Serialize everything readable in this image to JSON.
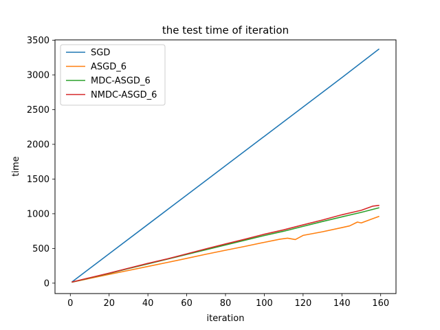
{
  "chart_data": {
    "type": "line",
    "title": "the test time of iteration",
    "xlabel": "iteration",
    "ylabel": "time",
    "xlim": [
      -7.9,
      167.9
    ],
    "ylim": [
      -150,
      3505
    ],
    "xticks": [
      0,
      20,
      40,
      60,
      80,
      100,
      120,
      140,
      160
    ],
    "yticks": [
      0,
      500,
      1000,
      1500,
      2000,
      2500,
      3000,
      3500
    ],
    "grid": false,
    "legend_position": "top-left",
    "series": [
      {
        "name": "SGD",
        "color": "#1f77b4",
        "points": [
          [
            1,
            21
          ],
          [
            20,
            423
          ],
          [
            40,
            846
          ],
          [
            60,
            1269
          ],
          [
            80,
            1692
          ],
          [
            100,
            2115
          ],
          [
            120,
            2538
          ],
          [
            140,
            2961
          ],
          [
            159,
            3370
          ]
        ]
      },
      {
        "name": "ASGD_6",
        "color": "#ff7f0e",
        "points": [
          [
            1,
            15
          ],
          [
            10,
            68
          ],
          [
            20,
            126
          ],
          [
            30,
            183
          ],
          [
            40,
            241
          ],
          [
            50,
            298
          ],
          [
            60,
            357
          ],
          [
            70,
            417
          ],
          [
            80,
            474
          ],
          [
            90,
            530
          ],
          [
            100,
            588
          ],
          [
            108,
            633
          ],
          [
            112,
            648
          ],
          [
            116,
            628
          ],
          [
            120,
            688
          ],
          [
            130,
            740
          ],
          [
            140,
            800
          ],
          [
            144,
            825
          ],
          [
            148,
            880
          ],
          [
            150,
            868
          ],
          [
            155,
            920
          ],
          [
            159,
            960
          ]
        ]
      },
      {
        "name": "MDC-ASGD_6",
        "color": "#2ca02c",
        "points": [
          [
            1,
            16
          ],
          [
            10,
            75
          ],
          [
            20,
            140
          ],
          [
            30,
            210
          ],
          [
            40,
            278
          ],
          [
            50,
            345
          ],
          [
            60,
            413
          ],
          [
            70,
            482
          ],
          [
            80,
            550
          ],
          [
            90,
            618
          ],
          [
            100,
            686
          ],
          [
            110,
            748
          ],
          [
            120,
            818
          ],
          [
            130,
            888
          ],
          [
            140,
            955
          ],
          [
            150,
            1020
          ],
          [
            159,
            1085
          ]
        ]
      },
      {
        "name": "NMDC-ASGD_6",
        "color": "#d62728",
        "points": [
          [
            1,
            17
          ],
          [
            10,
            78
          ],
          [
            20,
            145
          ],
          [
            30,
            215
          ],
          [
            40,
            285
          ],
          [
            50,
            350
          ],
          [
            60,
            422
          ],
          [
            70,
            495
          ],
          [
            80,
            565
          ],
          [
            90,
            633
          ],
          [
            100,
            705
          ],
          [
            110,
            768
          ],
          [
            120,
            840
          ],
          [
            130,
            910
          ],
          [
            140,
            985
          ],
          [
            150,
            1050
          ],
          [
            156,
            1110
          ],
          [
            159,
            1120
          ]
        ]
      }
    ]
  }
}
